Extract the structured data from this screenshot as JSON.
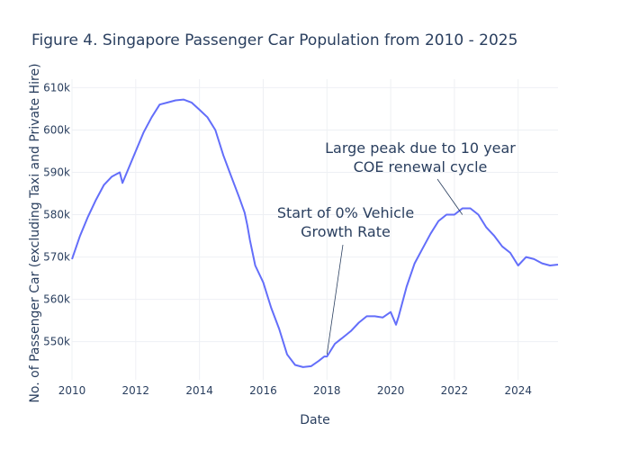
{
  "chart_data": {
    "type": "line",
    "title": "Figure 4. Singapore Passenger Car Population from 2010 - 2025",
    "xlabel": "Date",
    "ylabel": "No. of Passenger Car (excluding Taxi and Private Hire)",
    "x_ticks": [
      "2010",
      "2012",
      "2014",
      "2016",
      "2018",
      "2020",
      "2022",
      "2024"
    ],
    "y_ticks": [
      "550k",
      "560k",
      "570k",
      "580k",
      "590k",
      "600k",
      "610k"
    ],
    "xlim": [
      "2010-01",
      "2025-04"
    ],
    "ylim": [
      541000,
      612000
    ],
    "grid": true,
    "line_color": "#636efa",
    "series": [
      {
        "x": [
          "2010-01",
          "2010-04",
          "2010-07",
          "2010-10",
          "2011-01",
          "2011-04",
          "2011-07",
          "2011-08",
          "2011-10",
          "2012-01",
          "2012-04",
          "2012-07",
          "2012-10",
          "2013-01",
          "2013-04",
          "2013-07",
          "2013-10",
          "2014-01",
          "2014-04",
          "2014-07",
          "2014-10",
          "2015-01",
          "2015-04",
          "2015-06",
          "2015-07",
          "2015-08",
          "2015-10",
          "2016-01",
          "2016-04",
          "2016-07",
          "2016-10",
          "2017-01",
          "2017-04",
          "2017-07",
          "2017-10",
          "2017-12",
          "2018-01",
          "2018-04",
          "2018-06",
          "2018-07",
          "2018-10",
          "2019-01",
          "2019-04",
          "2019-07",
          "2019-10",
          "2020-01",
          "2020-03",
          "2020-04",
          "2020-07",
          "2020-10",
          "2021-01",
          "2021-04",
          "2021-07",
          "2021-10",
          "2022-01",
          "2022-04",
          "2022-07",
          "2022-10",
          "2023-01",
          "2023-04",
          "2023-07",
          "2023-10",
          "2024-01",
          "2024-04",
          "2024-07",
          "2024-10",
          "2025-01",
          "2025-04"
        ],
        "y": [
          569500,
          575000,
          579500,
          583500,
          587000,
          589000,
          590000,
          587500,
          590500,
          595000,
          599500,
          603000,
          606000,
          606500,
          607000,
          607200,
          606500,
          604800,
          603000,
          600000,
          594000,
          589000,
          584000,
          580500,
          577500,
          574000,
          568000,
          564000,
          558000,
          553000,
          547000,
          544500,
          544000,
          544200,
          545500,
          546500,
          546500,
          549500,
          550500,
          551000,
          552500,
          554500,
          556000,
          556000,
          555700,
          557000,
          554000,
          556000,
          563000,
          568500,
          572000,
          575500,
          578500,
          580000,
          580000,
          581500,
          581500,
          580000,
          577000,
          575000,
          572500,
          571000,
          568000,
          570000,
          569500,
          568500,
          568000,
          568200
        ]
      }
    ],
    "annotations": [
      {
        "lines": [
          "Start of 0% Vehicle",
          "Growth Rate"
        ],
        "target_x": "2018-01",
        "target_y": 547000
      },
      {
        "lines": [
          "Large peak due to 10 year",
          "COE renewal cycle"
        ],
        "target_x": "2022-04",
        "target_y": 580000
      }
    ]
  }
}
